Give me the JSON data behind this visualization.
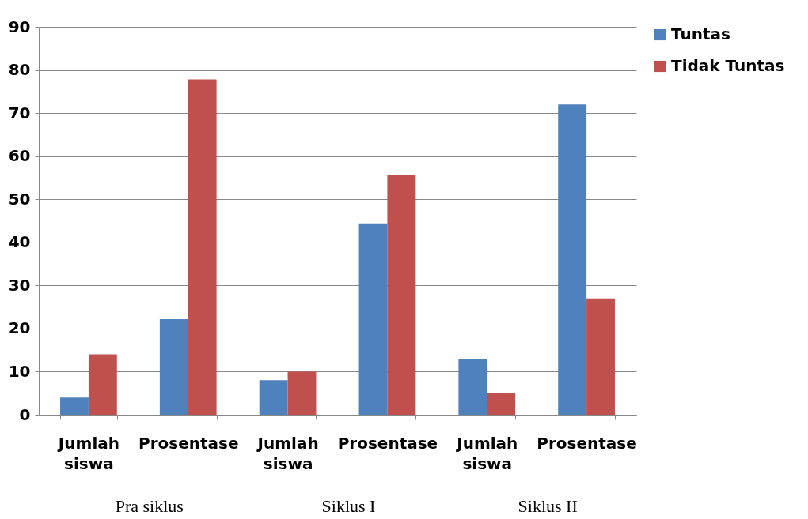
{
  "chart_data": {
    "type": "bar",
    "categories": [
      "Jumlah siswa",
      "Prosentase",
      "Jumlah siswa",
      "Prosentase",
      "Jumlah siswa",
      "Prosentase"
    ],
    "series": [
      {
        "name": "Tuntas",
        "color": "#4f81bd",
        "values": [
          4,
          22.2,
          8,
          44.4,
          13,
          72
        ]
      },
      {
        "name": "Tidak Tuntas",
        "color": "#c0504d",
        "values": [
          14,
          77.8,
          10,
          55.6,
          5,
          27
        ]
      }
    ],
    "ylim": [
      0,
      90
    ],
    "yticks": [
      0,
      10,
      20,
      30,
      40,
      50,
      60,
      70,
      80,
      90
    ],
    "grid": "y",
    "legend": "right",
    "annotations": [
      "Pra siklus",
      "Siklus I",
      "Siklus II"
    ]
  }
}
